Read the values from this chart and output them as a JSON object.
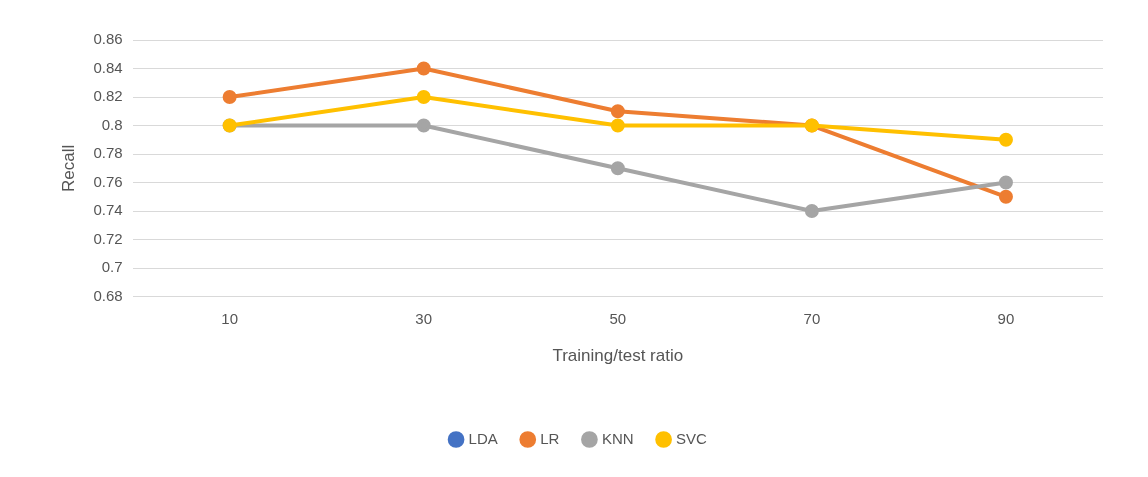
{
  "chart_data": {
    "type": "line",
    "xlabel": "Training/test ratio",
    "ylabel": "Recall",
    "categories": [
      "10",
      "30",
      "50",
      "70",
      "90"
    ],
    "series": [
      {
        "name": "LDA",
        "color": "#4472c4",
        "values": [
          null,
          null,
          null,
          null,
          null
        ]
      },
      {
        "name": "LR",
        "color": "#ed7d31",
        "values": [
          0.82,
          0.84,
          0.81,
          0.8,
          0.75
        ]
      },
      {
        "name": "KNN",
        "color": "#a5a5a5",
        "values": [
          0.8,
          0.8,
          0.77,
          0.74,
          0.76
        ]
      },
      {
        "name": "SVC",
        "color": "#ffc000",
        "values": [
          0.8,
          0.82,
          0.8,
          0.8,
          0.79
        ]
      }
    ],
    "ylim": [
      0.68,
      0.86
    ],
    "yticks": [
      0.68,
      0.7,
      0.72,
      0.74,
      0.76,
      0.78,
      0.8,
      0.82,
      0.84,
      0.86
    ],
    "grid": "y",
    "legend": "bottom",
    "marker": "circle"
  }
}
